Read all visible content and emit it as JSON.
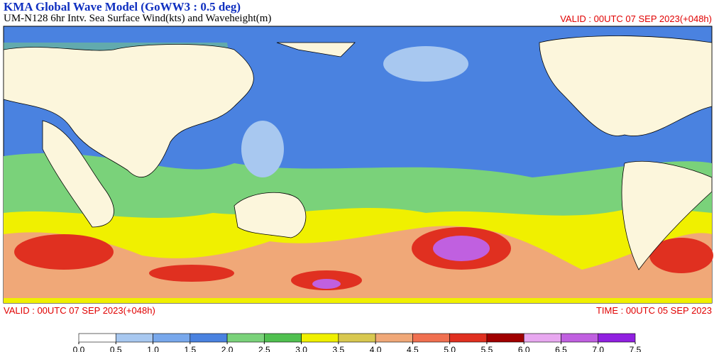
{
  "header": {
    "title": "KMA  Global Wave Model (GoWW3 : 0.5 deg)",
    "subtitle": "UM-N128  6hr Intv. Sea Surface Wind(kts) and Waveheight(m)",
    "valid": "VALID : 00UTC 07 SEP 2023(+048h)"
  },
  "footer": {
    "valid": "VALID : 00UTC 07 SEP 2023(+048h)",
    "time": "TIME : 00UTC 05 SEP 2023"
  },
  "colorbar": {
    "ticks": [
      {
        "value": 0,
        "label": "0.0"
      },
      {
        "value": 0.5,
        "label": "0.5"
      },
      {
        "value": 1,
        "label": "1.0"
      },
      {
        "value": 1.5,
        "label": "1.5"
      },
      {
        "value": 2,
        "label": "2.0"
      },
      {
        "value": 2.5,
        "label": "2.5"
      },
      {
        "value": 3,
        "label": "3.0"
      },
      {
        "value": 3.5,
        "label": "3.5"
      },
      {
        "value": 4,
        "label": "4.0"
      },
      {
        "value": 4.5,
        "label": "4.5"
      },
      {
        "value": 5,
        "label": "5.0"
      },
      {
        "value": 5.5,
        "label": "5.5"
      },
      {
        "value": 6,
        "label": "6.0"
      },
      {
        "value": 6.5,
        "label": "6.5"
      },
      {
        "value": 7,
        "label": "7.0"
      },
      {
        "value": 7.5,
        "label": "7.5"
      }
    ],
    "colors": [
      "#ffffff",
      "#a8c8f0",
      "#78a8ec",
      "#4a82e0",
      "#7ad27a",
      "#50c050",
      "#f0f000",
      "#d8c850",
      "#f0a878",
      "#f07050",
      "#e03020",
      "#a00000",
      "#e8a8f0",
      "#c060e0",
      "#9020e0"
    ]
  }
}
